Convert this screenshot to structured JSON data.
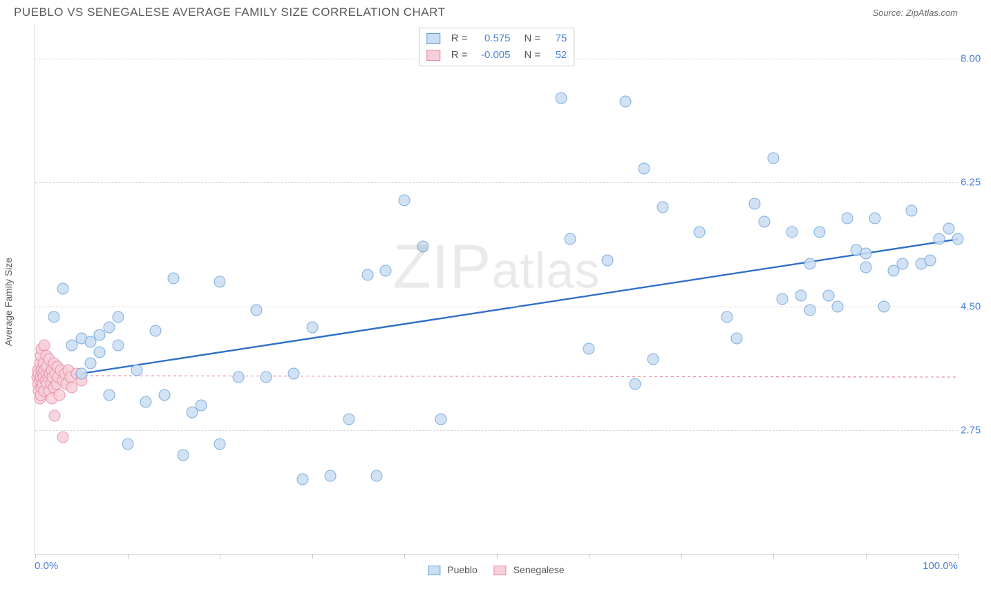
{
  "title": "PUEBLO VS SENEGALESE AVERAGE FAMILY SIZE CORRELATION CHART",
  "source": "Source: ZipAtlas.com",
  "ylabel": "Average Family Size",
  "watermark": "ZIPatlas",
  "xaxis": {
    "min_label": "0.0%",
    "max_label": "100.0%",
    "min": 0,
    "max": 100,
    "ticks": [
      0,
      10,
      20,
      30,
      40,
      50,
      60,
      70,
      80,
      90,
      100
    ]
  },
  "yaxis": {
    "min": 1.0,
    "max": 8.5,
    "gridlines": [
      2.75,
      4.5,
      6.25,
      8.0
    ],
    "tick_labels": [
      "2.75",
      "4.50",
      "6.25",
      "8.00"
    ]
  },
  "series": [
    {
      "name": "Pueblo",
      "color_fill": "#c9ddf3",
      "color_stroke": "#6a9fd8",
      "marker_size": 17,
      "R_label": "R =",
      "R": "0.575",
      "N_label": "N =",
      "N": "75",
      "trend": {
        "x1": 0,
        "y1": 3.45,
        "x2": 100,
        "y2": 5.45,
        "stroke": "#2f6fc7",
        "width": 2.4,
        "dash": "none"
      },
      "points": [
        [
          2,
          4.35
        ],
        [
          3,
          4.75
        ],
        [
          4,
          3.95
        ],
        [
          5,
          4.05
        ],
        [
          5,
          3.55
        ],
        [
          6,
          4.0
        ],
        [
          6,
          3.7
        ],
        [
          7,
          4.1
        ],
        [
          7,
          3.85
        ],
        [
          8,
          4.2
        ],
        [
          8,
          3.25
        ],
        [
          9,
          3.95
        ],
        [
          9,
          4.35
        ],
        [
          10,
          2.55
        ],
        [
          11,
          3.6
        ],
        [
          12,
          3.15
        ],
        [
          13,
          4.15
        ],
        [
          14,
          3.25
        ],
        [
          15,
          4.9
        ],
        [
          16,
          2.4
        ],
        [
          17,
          3.0
        ],
        [
          18,
          3.1
        ],
        [
          20,
          4.85
        ],
        [
          20,
          2.55
        ],
        [
          22,
          3.5
        ],
        [
          24,
          4.45
        ],
        [
          25,
          3.5
        ],
        [
          28,
          3.55
        ],
        [
          29,
          2.05
        ],
        [
          30,
          4.2
        ],
        [
          32,
          2.1
        ],
        [
          34,
          2.9
        ],
        [
          36,
          4.95
        ],
        [
          37,
          2.1
        ],
        [
          38,
          5.0
        ],
        [
          40,
          6.0
        ],
        [
          42,
          5.35
        ],
        [
          44,
          2.9
        ],
        [
          57,
          7.45
        ],
        [
          58,
          5.45
        ],
        [
          60,
          3.9
        ],
        [
          62,
          5.15
        ],
        [
          64,
          7.4
        ],
        [
          65,
          3.4
        ],
        [
          66,
          6.45
        ],
        [
          67,
          3.75
        ],
        [
          68,
          5.9
        ],
        [
          72,
          5.55
        ],
        [
          75,
          4.35
        ],
        [
          76,
          4.05
        ],
        [
          78,
          5.95
        ],
        [
          79,
          5.7
        ],
        [
          80,
          6.6
        ],
        [
          81,
          4.6
        ],
        [
          82,
          5.55
        ],
        [
          83,
          4.65
        ],
        [
          84,
          4.45
        ],
        [
          84,
          5.1
        ],
        [
          85,
          5.55
        ],
        [
          86,
          4.65
        ],
        [
          87,
          4.5
        ],
        [
          88,
          5.75
        ],
        [
          89,
          5.3
        ],
        [
          90,
          5.05
        ],
        [
          90,
          5.25
        ],
        [
          91,
          5.75
        ],
        [
          92,
          4.5
        ],
        [
          93,
          5.0
        ],
        [
          94,
          5.1
        ],
        [
          95,
          5.85
        ],
        [
          96,
          5.1
        ],
        [
          97,
          5.15
        ],
        [
          98,
          5.45
        ],
        [
          99,
          5.6
        ],
        [
          100,
          5.45
        ]
      ]
    },
    {
      "name": "Senegalese",
      "color_fill": "#f7cfd9",
      "color_stroke": "#e48aa3",
      "marker_size": 17,
      "R_label": "R =",
      "R": "-0.005",
      "N_label": "N =",
      "N": "52",
      "trend": {
        "x1": 0,
        "y1": 3.52,
        "x2": 100,
        "y2": 3.5,
        "stroke": "#e48aa3",
        "width": 1.2,
        "dash": "4 4"
      },
      "points": [
        [
          0.2,
          3.5
        ],
        [
          0.3,
          3.6
        ],
        [
          0.3,
          3.4
        ],
        [
          0.4,
          3.55
        ],
        [
          0.4,
          3.3
        ],
        [
          0.5,
          3.7
        ],
        [
          0.5,
          3.45
        ],
        [
          0.5,
          3.2
        ],
        [
          0.6,
          3.8
        ],
        [
          0.6,
          3.5
        ],
        [
          0.6,
          3.25
        ],
        [
          0.7,
          3.9
        ],
        [
          0.7,
          3.6
        ],
        [
          0.7,
          3.35
        ],
        [
          0.8,
          3.55
        ],
        [
          0.8,
          3.4
        ],
        [
          0.9,
          3.7
        ],
        [
          0.9,
          3.5
        ],
        [
          1.0,
          3.95
        ],
        [
          1.0,
          3.6
        ],
        [
          1.0,
          3.3
        ],
        [
          1.1,
          3.45
        ],
        [
          1.2,
          3.8
        ],
        [
          1.2,
          3.55
        ],
        [
          1.3,
          3.4
        ],
        [
          1.3,
          3.65
        ],
        [
          1.4,
          3.5
        ],
        [
          1.5,
          3.3
        ],
        [
          1.5,
          3.75
        ],
        [
          1.6,
          3.55
        ],
        [
          1.7,
          3.4
        ],
        [
          1.8,
          3.6
        ],
        [
          1.8,
          3.2
        ],
        [
          1.9,
          3.5
        ],
        [
          2.0,
          3.7
        ],
        [
          2.0,
          3.35
        ],
        [
          2.1,
          2.95
        ],
        [
          2.2,
          3.55
        ],
        [
          2.3,
          3.4
        ],
        [
          2.4,
          3.65
        ],
        [
          2.5,
          3.5
        ],
        [
          2.6,
          3.25
        ],
        [
          2.8,
          3.6
        ],
        [
          3.0,
          2.65
        ],
        [
          3.0,
          3.45
        ],
        [
          3.2,
          3.55
        ],
        [
          3.4,
          3.4
        ],
        [
          3.6,
          3.6
        ],
        [
          3.8,
          3.5
        ],
        [
          4.0,
          3.35
        ],
        [
          4.5,
          3.55
        ],
        [
          5.0,
          3.45
        ]
      ]
    }
  ],
  "legend_bottom_labels": [
    "Pueblo",
    "Senegalese"
  ]
}
